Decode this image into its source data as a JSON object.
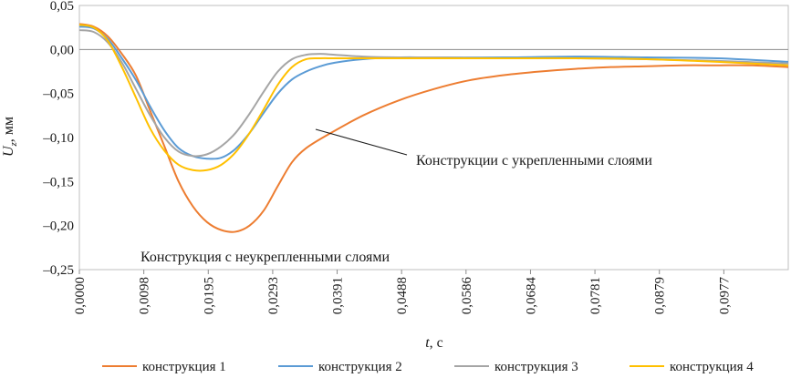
{
  "chart_data": {
    "type": "line",
    "title": "",
    "xlabel": "t, с",
    "ylabel": "Uz, мм",
    "ylabel_main": "U",
    "ylabel_sub": "z",
    "ylabel_unit": ", мм",
    "xlabel_main": "t",
    "xlabel_unit": ", с",
    "xlim": [
      0,
      0.1
    ],
    "ylim": [
      -0.25,
      0.05
    ],
    "grid": false,
    "legend_position": "bottom",
    "x_ticks": [
      "0,0000",
      "0,0098",
      "0,0195",
      "0,0293",
      "0,0391",
      "0,0488",
      "0,0586",
      "0,0684",
      "0,0781",
      "0,0879",
      "0,0977"
    ],
    "y_ticks": [
      "0,05",
      "0,00",
      "–0,05",
      "–0,10",
      "–0,15",
      "–0,20",
      "–0,25"
    ],
    "annotations": [
      {
        "text": "Конструкции с укрепленными слоями"
      },
      {
        "text": "Конструкция с неукрепленными слоями"
      }
    ],
    "series": [
      {
        "name": "конструкция 1",
        "color": "#ED7D31",
        "points": [
          [
            0,
            0.029
          ],
          [
            0.002,
            0.026
          ],
          [
            0.004,
            0.015
          ],
          [
            0.006,
            -0.005
          ],
          [
            0.008,
            -0.03
          ],
          [
            0.01,
            -0.07
          ],
          [
            0.012,
            -0.11
          ],
          [
            0.014,
            -0.15
          ],
          [
            0.016,
            -0.178
          ],
          [
            0.018,
            -0.196
          ],
          [
            0.02,
            -0.205
          ],
          [
            0.022,
            -0.207
          ],
          [
            0.024,
            -0.2
          ],
          [
            0.026,
            -0.183
          ],
          [
            0.028,
            -0.155
          ],
          [
            0.03,
            -0.128
          ],
          [
            0.032,
            -0.112
          ],
          [
            0.035,
            -0.097
          ],
          [
            0.04,
            -0.075
          ],
          [
            0.045,
            -0.058
          ],
          [
            0.05,
            -0.045
          ],
          [
            0.055,
            -0.035
          ],
          [
            0.06,
            -0.029
          ],
          [
            0.065,
            -0.025
          ],
          [
            0.07,
            -0.022
          ],
          [
            0.075,
            -0.02
          ],
          [
            0.08,
            -0.019
          ],
          [
            0.085,
            -0.018
          ],
          [
            0.09,
            -0.018
          ],
          [
            0.095,
            -0.018
          ],
          [
            0.1,
            -0.02
          ]
        ]
      },
      {
        "name": "конструкция 2",
        "color": "#5B9BD5",
        "points": [
          [
            0,
            0.026
          ],
          [
            0.002,
            0.024
          ],
          [
            0.004,
            0.012
          ],
          [
            0.006,
            -0.01
          ],
          [
            0.008,
            -0.035
          ],
          [
            0.01,
            -0.065
          ],
          [
            0.012,
            -0.092
          ],
          [
            0.014,
            -0.112
          ],
          [
            0.016,
            -0.121
          ],
          [
            0.018,
            -0.124
          ],
          [
            0.02,
            -0.123
          ],
          [
            0.022,
            -0.113
          ],
          [
            0.024,
            -0.095
          ],
          [
            0.026,
            -0.072
          ],
          [
            0.028,
            -0.05
          ],
          [
            0.03,
            -0.034
          ],
          [
            0.032,
            -0.025
          ],
          [
            0.034,
            -0.019
          ],
          [
            0.036,
            -0.015
          ],
          [
            0.04,
            -0.011
          ],
          [
            0.045,
            -0.009
          ],
          [
            0.05,
            -0.009
          ],
          [
            0.06,
            -0.009
          ],
          [
            0.07,
            -0.008
          ],
          [
            0.08,
            -0.009
          ],
          [
            0.09,
            -0.01
          ],
          [
            0.1,
            -0.014
          ]
        ]
      },
      {
        "name": "конструкция 3",
        "color": "#A5A5A5",
        "points": [
          [
            0,
            0.022
          ],
          [
            0.002,
            0.02
          ],
          [
            0.004,
            0.008
          ],
          [
            0.006,
            -0.015
          ],
          [
            0.008,
            -0.045
          ],
          [
            0.01,
            -0.075
          ],
          [
            0.012,
            -0.1
          ],
          [
            0.014,
            -0.116
          ],
          [
            0.016,
            -0.121
          ],
          [
            0.018,
            -0.119
          ],
          [
            0.02,
            -0.11
          ],
          [
            0.022,
            -0.095
          ],
          [
            0.024,
            -0.073
          ],
          [
            0.026,
            -0.048
          ],
          [
            0.028,
            -0.025
          ],
          [
            0.03,
            -0.011
          ],
          [
            0.032,
            -0.006
          ],
          [
            0.034,
            -0.005
          ],
          [
            0.036,
            -0.006
          ],
          [
            0.04,
            -0.008
          ],
          [
            0.045,
            -0.009
          ],
          [
            0.05,
            -0.009
          ],
          [
            0.06,
            -0.01
          ],
          [
            0.07,
            -0.01
          ],
          [
            0.08,
            -0.011
          ],
          [
            0.09,
            -0.013
          ],
          [
            0.1,
            -0.016
          ]
        ]
      },
      {
        "name": "конструкция 4",
        "color": "#FFC000",
        "points": [
          [
            0,
            0.028
          ],
          [
            0.002,
            0.025
          ],
          [
            0.004,
            0.01
          ],
          [
            0.006,
            -0.02
          ],
          [
            0.008,
            -0.055
          ],
          [
            0.01,
            -0.09
          ],
          [
            0.012,
            -0.115
          ],
          [
            0.014,
            -0.131
          ],
          [
            0.016,
            -0.137
          ],
          [
            0.018,
            -0.137
          ],
          [
            0.02,
            -0.131
          ],
          [
            0.022,
            -0.117
          ],
          [
            0.024,
            -0.095
          ],
          [
            0.026,
            -0.068
          ],
          [
            0.028,
            -0.04
          ],
          [
            0.03,
            -0.02
          ],
          [
            0.032,
            -0.011
          ],
          [
            0.034,
            -0.01
          ],
          [
            0.036,
            -0.01
          ],
          [
            0.04,
            -0.01
          ],
          [
            0.045,
            -0.01
          ],
          [
            0.05,
            -0.01
          ],
          [
            0.06,
            -0.01
          ],
          [
            0.07,
            -0.01
          ],
          [
            0.08,
            -0.011
          ],
          [
            0.09,
            -0.014
          ],
          [
            0.1,
            -0.018
          ]
        ]
      }
    ]
  }
}
